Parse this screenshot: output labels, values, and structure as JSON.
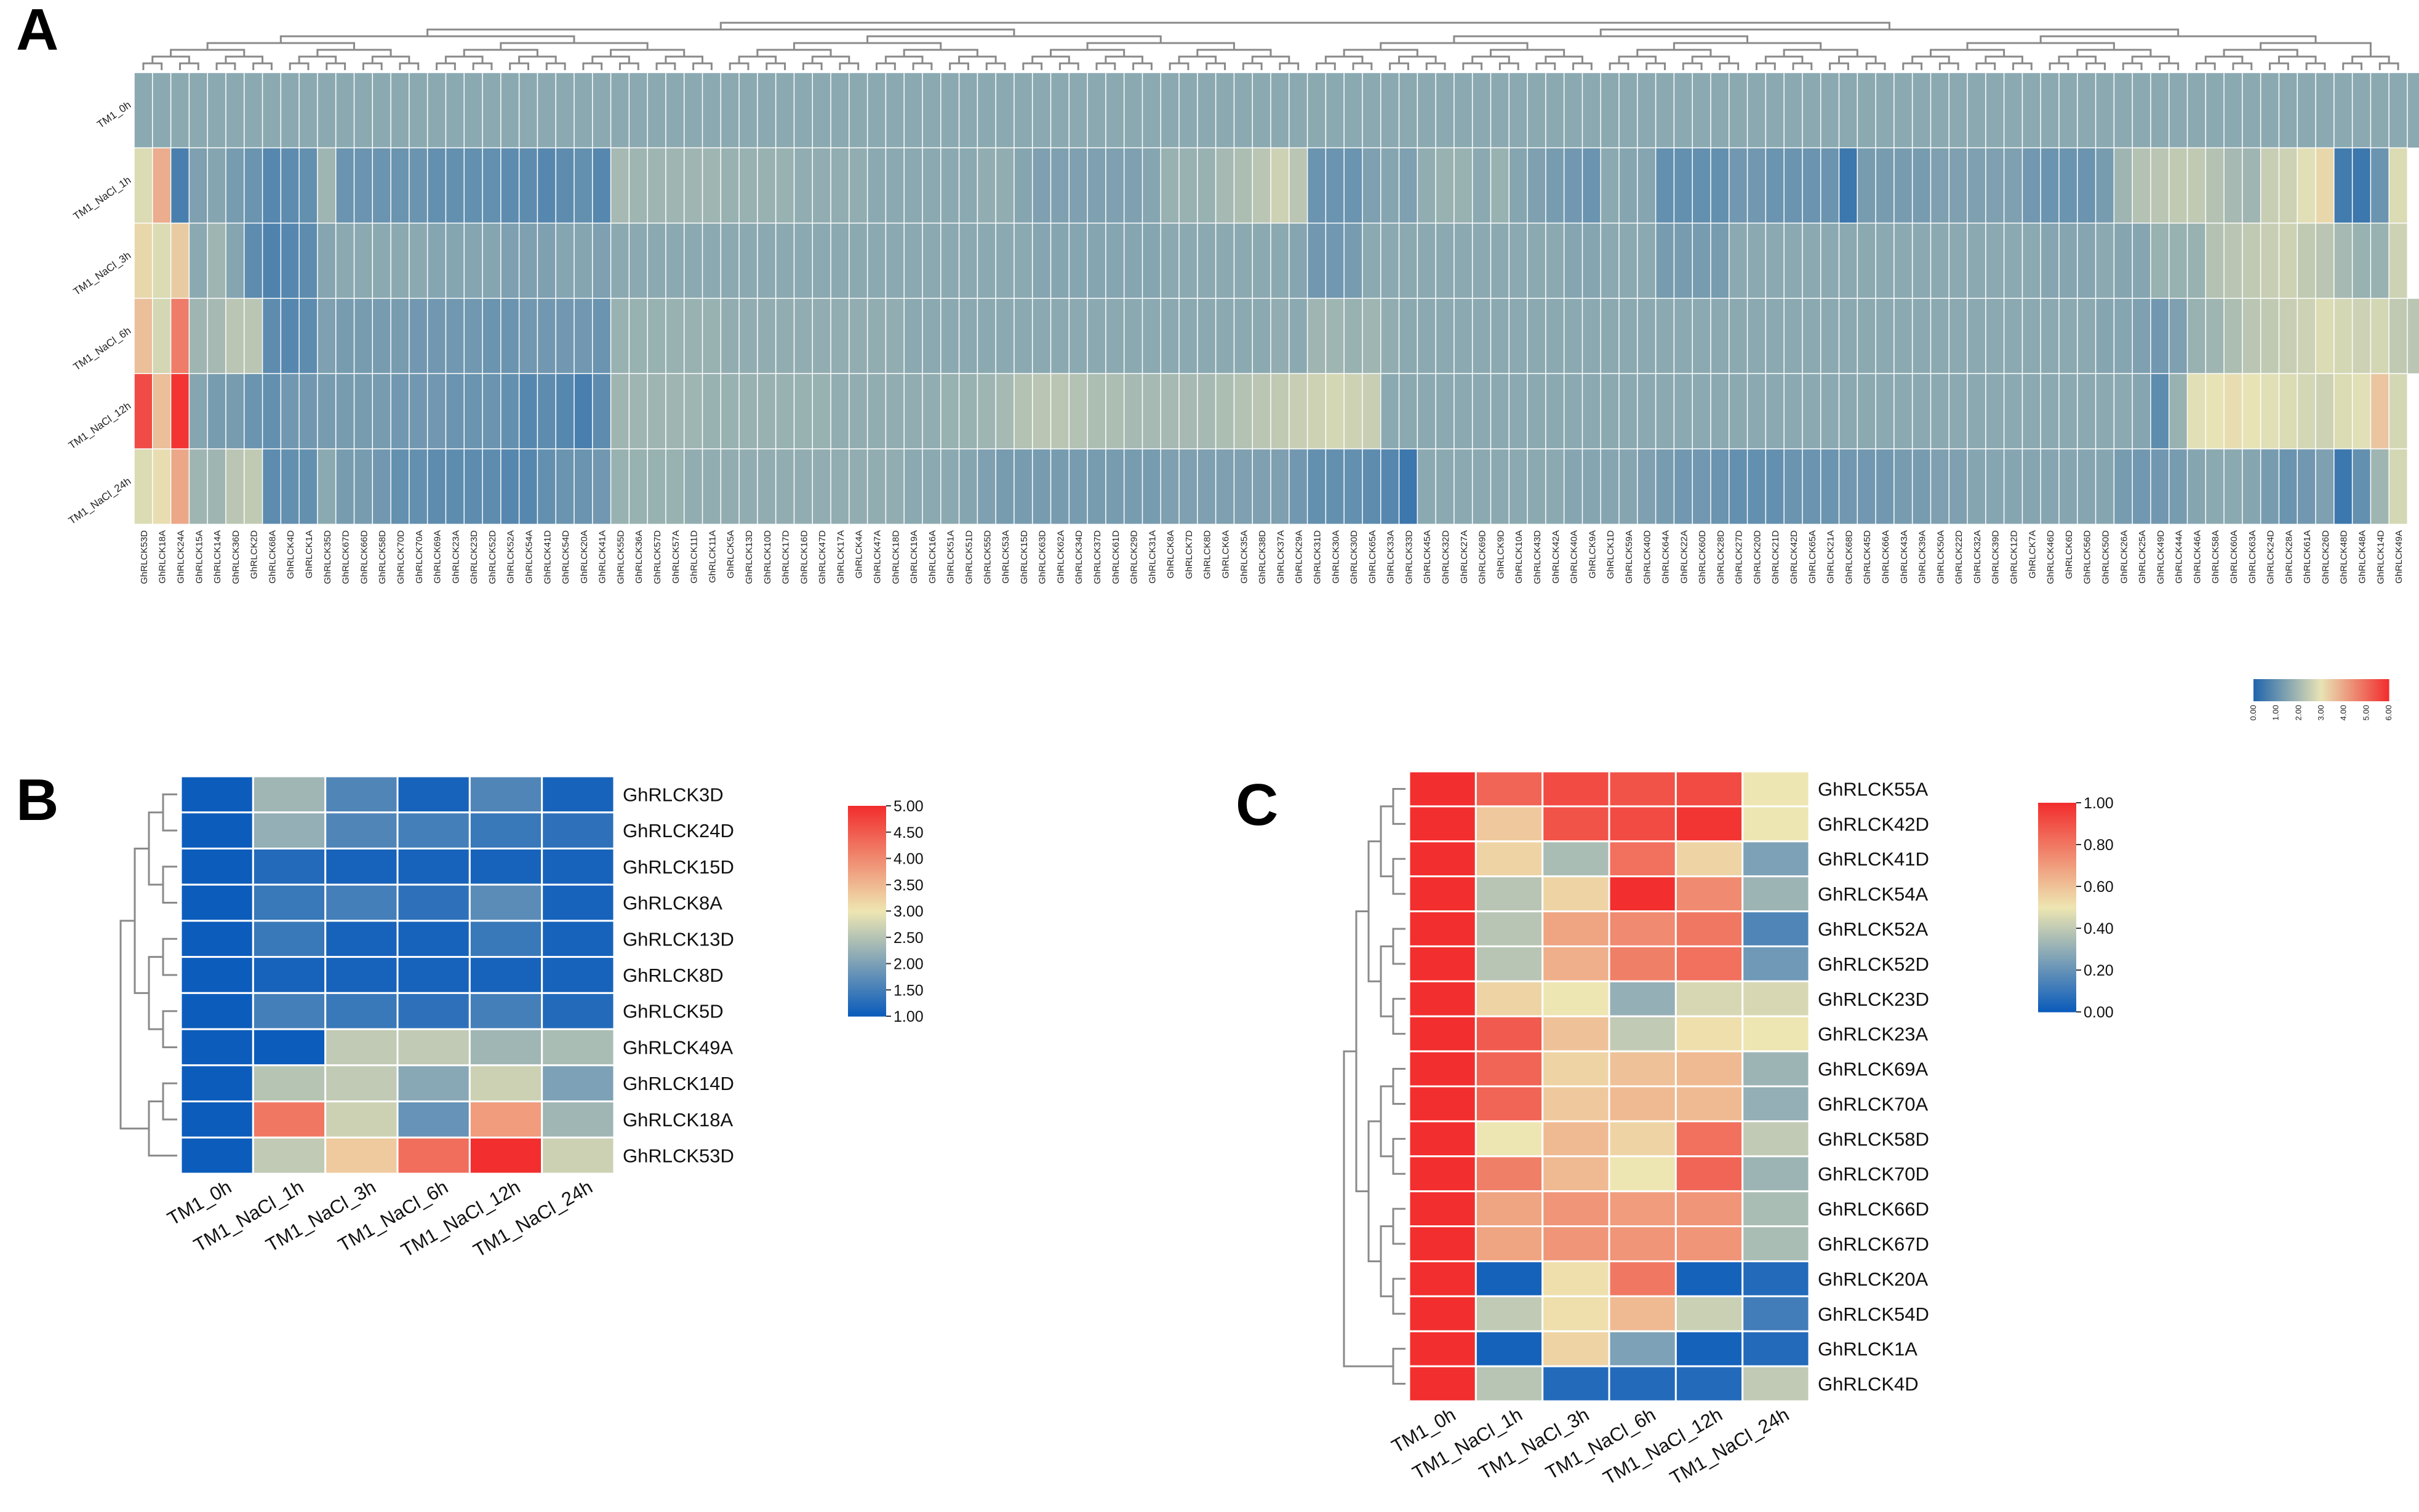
{
  "panels": {
    "a": "A",
    "b": "B",
    "c": "C"
  },
  "chart_data": [
    {
      "type": "heatmap",
      "panel": "A",
      "title": "",
      "rows": [
        "TM1_0h",
        "TM1_NaCl_1h",
        "TM1_NaCl_3h",
        "TM1_NaCl_6h",
        "TM1_NaCl_12h",
        "TM1_NaCl_24h"
      ],
      "columns": [
        "GhRLCK53D",
        "GhRLCK18A",
        "GhRLCK24A",
        "GhRLCK15A",
        "GhRLCK14A",
        "GhRLCK36D",
        "GhRLCK2D",
        "GhRLCK68A",
        "GhRLCK4D",
        "GhRLCK1A",
        "GhRLCK35D",
        "GhRLCK67D",
        "GhRLCK66D",
        "GhRLCK58D",
        "GhRLCK70D",
        "GhRLCK70A",
        "GhRLCK69A",
        "GhRLCK23A",
        "GhRLCK23D",
        "GhRLCK52D",
        "GhRLCK52A",
        "GhRLCK54A",
        "GhRLCK41D",
        "GhRLCK54D",
        "GhRLCK20A",
        "GhRLCK41A",
        "GhRLCK55D",
        "GhRLCK36A",
        "GhRLCK57D",
        "GhRLCK57A",
        "GhRLCK11D",
        "GhRLCK11A",
        "GhRLCK5A",
        "GhRLCK13D",
        "GhRLCK10D",
        "GhRLCK17D",
        "GhRLCK16D",
        "GhRLCK47D",
        "GhRLCK17A",
        "GhRLCK4A",
        "GhRLCK47A",
        "GhRLCK18D",
        "GhRLCK19A",
        "GhRLCK16A",
        "GhRLCK51A",
        "GhRLCK51D",
        "GhRLCK55D",
        "GhRLCK53A",
        "GhRLCK15D",
        "GhRLCK63D",
        "GhRLCK62A",
        "GhRLCK34D",
        "GhRLCK37D",
        "GhRLCK61D",
        "GhRLCK29D",
        "GhRLCK31A",
        "GhRLCK8A",
        "GhRLCK7D",
        "GhRLCK8D",
        "GhRLCK6A",
        "GhRLCK35A",
        "GhRLCK38D",
        "GhRLCK37A",
        "GhRLCK29A",
        "GhRLCK31D",
        "GhRLCK30A",
        "GhRLCK30D",
        "GhRLCK65A",
        "GhRLCK33A",
        "GhRLCK33D",
        "GhRLCK45A",
        "GhRLCK32D",
        "GhRLCK27A",
        "GhRLCK69D",
        "GhRLCK9D",
        "GhRLCK10A",
        "GhRLCK43D",
        "GhRLCK42A",
        "GhRLCK40A",
        "GhRLCK9A",
        "GhRLCK1D",
        "GhRLCK59A",
        "GhRLCK40D",
        "GhRLCK64A",
        "GhRLCK22A",
        "GhRLCK60D",
        "GhRLCK28D",
        "GhRLCK27D",
        "GhRLCK20D",
        "GhRLCK21D",
        "GhRLCK42D",
        "GhRLCK65A",
        "GhRLCK21A",
        "GhRLCK68D",
        "GhRLCK45D",
        "GhRLCK66A",
        "GhRLCK43A",
        "GhRLCK39A",
        "GhRLCK50A",
        "GhRLCK22D",
        "GhRLCK32A",
        "GhRLCK39D",
        "GhRLCK12D",
        "GhRLCK7A",
        "GhRLCK46D",
        "GhRLCK6D",
        "GhRLCK56D",
        "GhRLCK50D",
        "GhRLCK26A",
        "GhRLCK25A",
        "GhRLCK49D",
        "GhRLCK44A",
        "GhRLCK46A",
        "GhRLCK58A",
        "GhRLCK60A",
        "GhRLCK63A",
        "GhRLCK24D",
        "GhRLCK28A",
        "GhRLCK61A",
        "GhRLCK26D",
        "GhRLCK48D",
        "GhRLCK48A",
        "GhRLCK14D",
        "GhRLCK49A"
      ],
      "values": [
        [
          1.6,
          1.6,
          1.6,
          1.6,
          1.6,
          1.6,
          1.6,
          1.6,
          1.6,
          1.6,
          1.6,
          1.6,
          1.6,
          1.6,
          1.6,
          1.6,
          1.6,
          1.6,
          1.6,
          1.6,
          1.6,
          1.6,
          1.6,
          1.6,
          1.6,
          1.6,
          1.6,
          1.6,
          1.6,
          1.6,
          1.6,
          1.6,
          1.6,
          1.6,
          1.6,
          1.6,
          1.6,
          1.6,
          1.6,
          1.6,
          1.6,
          1.6,
          1.6,
          1.6,
          1.6,
          1.6,
          1.6,
          1.6,
          1.6,
          1.6,
          1.6,
          1.6,
          1.6,
          1.6,
          1.6,
          1.6,
          1.6,
          1.6,
          1.6,
          1.6,
          1.6,
          1.6,
          1.6,
          1.6,
          1.6,
          1.6,
          1.6,
          1.6,
          1.6,
          1.6,
          1.6,
          1.6,
          1.6,
          1.6,
          1.6,
          1.6,
          1.6,
          1.6,
          1.6,
          1.6,
          1.6,
          1.6,
          1.6,
          1.6,
          1.6,
          1.6,
          1.6,
          1.6,
          1.6,
          1.6,
          1.6,
          1.6,
          1.6,
          1.6,
          1.6,
          1.6,
          1.6,
          1.6,
          1.6,
          1.6,
          1.6,
          1.6,
          1.6,
          1.6,
          1.6,
          1.6,
          1.6,
          1.6,
          1.6,
          1.6,
          1.6,
          1.6,
          1.6,
          1.6,
          1.6,
          1.6,
          1.6,
          1.6,
          1.6,
          1.6,
          1.6,
          1.6,
          1.6,
          1.6,
          1.6,
          1.6,
          1.6,
          1.6
        ],
        [
          2.8,
          3.9,
          0.6,
          1.4,
          1.5,
          1.3,
          1.1,
          0.8,
          0.9,
          1.0,
          1.9,
          1.1,
          1.1,
          1.1,
          1.1,
          1.1,
          1.0,
          1.0,
          1.0,
          1.0,
          0.9,
          0.9,
          0.8,
          0.9,
          1.0,
          0.8,
          2.0,
          1.9,
          1.9,
          1.9,
          1.9,
          1.9,
          1.8,
          1.8,
          1.8,
          1.8,
          1.7,
          1.7,
          1.7,
          1.7,
          1.6,
          1.6,
          1.6,
          1.6,
          1.6,
          1.6,
          1.7,
          1.7,
          1.5,
          1.4,
          1.4,
          1.4,
          1.4,
          1.4,
          1.4,
          1.5,
          1.8,
          1.8,
          1.8,
          2.0,
          2.1,
          2.3,
          2.6,
          2.3,
          1.1,
          1.1,
          1.1,
          1.4,
          1.5,
          1.4,
          1.7,
          1.8,
          1.8,
          1.6,
          1.8,
          1.5,
          1.4,
          1.3,
          1.2,
          1.1,
          1.6,
          1.5,
          1.5,
          1.0,
          1.0,
          1.0,
          1.0,
          1.2,
          1.2,
          1.1,
          1.1,
          1.1,
          1.1,
          0.4,
          1.3,
          1.3,
          1.3,
          1.3,
          1.4,
          1.4,
          1.4,
          1.4,
          1.4,
          1.2,
          1.1,
          1.1,
          1.1,
          1.3,
          1.9,
          2.2,
          2.3,
          2.4,
          2.4,
          2.2,
          2.0,
          1.9,
          2.5,
          2.6,
          2.9,
          3.2,
          0.5,
          0.4,
          1.1,
          2.8
        ],
        [
          3.2,
          2.8,
          3.4,
          1.6,
          1.9,
          1.5,
          0.9,
          0.7,
          0.8,
          0.9,
          1.5,
          1.6,
          1.6,
          1.6,
          1.6,
          1.6,
          1.5,
          1.5,
          1.5,
          1.5,
          1.4,
          1.4,
          1.4,
          1.5,
          1.5,
          1.4,
          1.6,
          1.6,
          1.6,
          1.6,
          1.6,
          1.6,
          1.6,
          1.6,
          1.6,
          1.6,
          1.6,
          1.6,
          1.6,
          1.6,
          1.6,
          1.6,
          1.6,
          1.6,
          1.6,
          1.6,
          1.6,
          1.6,
          1.6,
          1.5,
          1.5,
          1.5,
          1.5,
          1.5,
          1.5,
          1.5,
          1.6,
          1.6,
          1.6,
          1.6,
          1.6,
          1.6,
          1.6,
          1.5,
          1.2,
          1.2,
          1.3,
          1.6,
          1.6,
          1.6,
          1.6,
          1.6,
          1.6,
          1.6,
          1.6,
          1.6,
          1.6,
          1.6,
          1.5,
          1.5,
          1.6,
          1.6,
          1.6,
          1.3,
          1.3,
          1.3,
          1.3,
          1.6,
          1.6,
          1.6,
          1.6,
          1.6,
          1.6,
          1.6,
          1.6,
          1.6,
          1.6,
          1.6,
          1.6,
          1.6,
          1.6,
          1.6,
          1.6,
          1.6,
          1.5,
          1.5,
          1.5,
          1.6,
          1.5,
          1.5,
          1.8,
          1.8,
          1.8,
          2.2,
          2.3,
          2.4,
          2.5,
          2.6,
          2.4,
          2.3,
          2.0,
          1.8,
          1.8,
          2.6
        ],
        [
          3.6,
          2.7,
          4.7,
          1.9,
          2.0,
          2.3,
          2.3,
          0.9,
          0.8,
          0.9,
          1.4,
          1.3,
          1.3,
          1.3,
          1.3,
          1.2,
          1.2,
          1.2,
          1.2,
          1.1,
          1.1,
          1.2,
          1.2,
          1.2,
          1.2,
          1.1,
          1.8,
          1.8,
          1.8,
          1.8,
          1.8,
          1.8,
          1.7,
          1.7,
          1.7,
          1.7,
          1.7,
          1.7,
          1.7,
          1.7,
          1.7,
          1.7,
          1.6,
          1.6,
          1.6,
          1.6,
          1.6,
          1.6,
          1.6,
          1.6,
          1.6,
          1.6,
          1.6,
          1.6,
          1.6,
          1.6,
          1.6,
          1.6,
          1.6,
          1.6,
          1.6,
          1.6,
          1.7,
          1.6,
          1.9,
          1.9,
          1.8,
          1.9,
          1.7,
          1.6,
          1.6,
          1.6,
          1.6,
          1.6,
          1.6,
          1.6,
          1.6,
          1.6,
          1.6,
          1.6,
          1.6,
          1.6,
          1.6,
          1.6,
          1.6,
          1.6,
          1.6,
          1.6,
          1.6,
          1.6,
          1.6,
          1.6,
          1.6,
          1.6,
          1.6,
          1.6,
          1.6,
          1.6,
          1.6,
          1.6,
          1.6,
          1.6,
          1.6,
          1.6,
          1.6,
          1.6,
          1.6,
          1.5,
          1.5,
          1.4,
          1.2,
          1.4,
          1.8,
          1.9,
          2.1,
          2.3,
          2.4,
          2.5,
          2.6,
          2.8,
          2.7,
          2.6,
          2.7,
          2.4,
          2.3,
          2.8
        ],
        [
          5.5,
          3.6,
          5.9,
          1.5,
          1.3,
          1.3,
          1.1,
          1.0,
          1.2,
          1.2,
          1.3,
          1.3,
          1.3,
          1.3,
          1.2,
          1.2,
          1.2,
          1.1,
          1.1,
          1.1,
          1.0,
          0.8,
          0.9,
          0.8,
          0.6,
          0.9,
          1.9,
          1.9,
          1.9,
          1.9,
          1.9,
          1.8,
          1.8,
          1.8,
          1.8,
          1.8,
          1.8,
          1.8,
          1.7,
          1.7,
          1.7,
          1.7,
          1.7,
          1.7,
          1.8,
          1.8,
          1.9,
          2.0,
          2.2,
          2.3,
          2.3,
          2.2,
          2.1,
          2.1,
          2.0,
          2.0,
          2.0,
          2.0,
          2.0,
          2.1,
          2.2,
          2.3,
          2.4,
          2.5,
          2.6,
          2.7,
          2.6,
          2.5,
          1.6,
          1.6,
          1.6,
          1.6,
          1.6,
          1.6,
          1.6,
          1.6,
          1.6,
          1.6,
          1.6,
          1.6,
          1.6,
          1.6,
          1.6,
          1.6,
          1.6,
          1.6,
          1.6,
          1.6,
          1.6,
          1.6,
          1.6,
          1.6,
          1.6,
          1.6,
          1.6,
          1.6,
          1.6,
          1.6,
          1.6,
          1.6,
          1.6,
          1.6,
          1.6,
          1.6,
          1.6,
          1.6,
          1.6,
          1.6,
          1.6,
          1.5,
          0.9,
          1.8,
          2.9,
          3.0,
          3.1,
          3.0,
          2.9,
          2.8,
          2.7,
          2.6,
          2.8,
          2.9,
          3.5,
          2.7
        ],
        [
          2.8,
          3.1,
          4.0,
          1.9,
          1.9,
          2.3,
          2.4,
          0.9,
          1.0,
          1.0,
          1.6,
          1.3,
          1.3,
          1.2,
          1.0,
          1.0,
          0.9,
          0.9,
          0.9,
          0.9,
          0.8,
          0.8,
          1.0,
          1.1,
          1.1,
          1.2,
          1.8,
          1.8,
          1.8,
          1.8,
          1.7,
          1.7,
          1.7,
          1.7,
          1.7,
          1.7,
          1.7,
          1.7,
          1.7,
          1.7,
          1.7,
          1.7,
          1.6,
          1.6,
          1.6,
          1.5,
          1.4,
          1.3,
          1.3,
          1.3,
          1.3,
          1.3,
          1.3,
          1.3,
          1.3,
          1.3,
          1.4,
          1.4,
          1.4,
          1.4,
          1.4,
          1.4,
          1.4,
          1.2,
          1.0,
          1.0,
          1.0,
          0.9,
          0.8,
          0.4,
          1.6,
          1.6,
          1.6,
          1.6,
          1.6,
          1.6,
          1.6,
          1.6,
          1.5,
          1.5,
          1.5,
          1.5,
          1.4,
          1.3,
          1.2,
          1.2,
          1.1,
          1.0,
          1.0,
          1.0,
          1.1,
          1.1,
          1.1,
          1.2,
          1.2,
          1.2,
          1.3,
          1.3,
          1.4,
          1.4,
          1.5,
          1.5,
          1.5,
          1.5,
          1.5,
          1.5,
          1.5,
          1.5,
          1.3,
          1.2,
          1.2,
          1.3,
          1.5,
          1.6,
          1.6,
          1.5,
          1.3,
          1.1,
          1.2,
          1.4,
          0.4,
          1.0,
          1.9,
          2.7
        ]
      ],
      "colorbar": {
        "min": 0,
        "max": 6,
        "ticks": [
          "0.00",
          "1.00",
          "2.00",
          "3.00",
          "4.00",
          "5.00",
          "6.00"
        ]
      },
      "colormap": [
        "#2166ac",
        "#e8e3b5",
        "#f22e2e"
      ]
    },
    {
      "type": "heatmap",
      "panel": "B",
      "title": "",
      "rows": [
        "GhRLCK3D",
        "GhRLCK24D",
        "GhRLCK15D",
        "GhRLCK8A",
        "GhRLCK13D",
        "GhRLCK8D",
        "GhRLCK5D",
        "GhRLCK49A",
        "GhRLCK14D",
        "GhRLCK18A",
        "GhRLCK53D"
      ],
      "columns": [
        "TM1_0h",
        "TM1_NaCl_1h",
        "TM1_NaCl_3h",
        "TM1_NaCl_6h",
        "TM1_NaCl_12h",
        "TM1_NaCl_24h"
      ],
      "values": [
        [
          1.0,
          2.3,
          1.6,
          1.1,
          1.6,
          1.1
        ],
        [
          1.0,
          2.2,
          1.6,
          1.5,
          1.4,
          1.3
        ],
        [
          1.0,
          1.2,
          1.1,
          1.1,
          1.1,
          1.1
        ],
        [
          1.0,
          1.4,
          1.5,
          1.3,
          1.7,
          1.1
        ],
        [
          1.0,
          1.4,
          1.1,
          1.1,
          1.4,
          1.1
        ],
        [
          1.0,
          1.1,
          1.1,
          1.1,
          1.1,
          1.1
        ],
        [
          1.0,
          1.5,
          1.4,
          1.3,
          1.5,
          1.2
        ],
        [
          1.0,
          1.0,
          2.6,
          2.6,
          2.3,
          2.4
        ],
        [
          1.0,
          2.5,
          2.6,
          2.1,
          2.7,
          2.0
        ],
        [
          1.0,
          4.2,
          2.7,
          1.8,
          3.8,
          2.3
        ],
        [
          1.0,
          2.6,
          3.3,
          4.3,
          5.0,
          2.7
        ]
      ],
      "colorbar": {
        "min": 1,
        "max": 5,
        "ticks": [
          "1.00",
          "1.50",
          "2.00",
          "2.50",
          "3.00",
          "3.50",
          "4.00",
          "4.50",
          "5.00"
        ]
      },
      "colormap": [
        "#0c5cbb",
        "#eee6b2",
        "#f22e2e"
      ]
    },
    {
      "type": "heatmap",
      "panel": "C",
      "title": "",
      "rows": [
        "GhRLCK55A",
        "GhRLCK42D",
        "GhRLCK41D",
        "GhRLCK54A",
        "GhRLCK52A",
        "GhRLCK52D",
        "GhRLCK23D",
        "GhRLCK23A",
        "GhRLCK69A",
        "GhRLCK70A",
        "GhRLCK58D",
        "GhRLCK70D",
        "GhRLCK66D",
        "GhRLCK67D",
        "GhRLCK20A",
        "GhRLCK54D",
        "GhRLCK1A",
        "GhRLCK4D"
      ],
      "columns": [
        "TM1_0h",
        "TM1_NaCl_1h",
        "TM1_NaCl_3h",
        "TM1_NaCl_6h",
        "TM1_NaCl_12h",
        "TM1_NaCl_24h"
      ],
      "values": [
        [
          1.0,
          0.85,
          0.92,
          0.9,
          0.92,
          0.5
        ],
        [
          1.0,
          0.58,
          0.9,
          0.92,
          0.98,
          0.5
        ],
        [
          1.0,
          0.55,
          0.35,
          0.82,
          0.55,
          0.25
        ],
        [
          1.0,
          0.38,
          0.55,
          1.0,
          0.75,
          0.32
        ],
        [
          1.0,
          0.38,
          0.68,
          0.75,
          0.8,
          0.15
        ],
        [
          1.0,
          0.38,
          0.65,
          0.78,
          0.82,
          0.22
        ],
        [
          1.0,
          0.55,
          0.5,
          0.3,
          0.45,
          0.45
        ],
        [
          1.0,
          0.88,
          0.6,
          0.4,
          0.52,
          0.5
        ],
        [
          1.0,
          0.85,
          0.55,
          0.6,
          0.62,
          0.32
        ],
        [
          1.0,
          0.85,
          0.58,
          0.62,
          0.62,
          0.3
        ],
        [
          1.0,
          0.5,
          0.62,
          0.55,
          0.82,
          0.4
        ],
        [
          1.0,
          0.78,
          0.62,
          0.5,
          0.85,
          0.32
        ],
        [
          1.0,
          0.68,
          0.72,
          0.7,
          0.72,
          0.35
        ],
        [
          1.0,
          0.68,
          0.72,
          0.72,
          0.72,
          0.35
        ],
        [
          1.0,
          0.02,
          0.52,
          0.8,
          0.02,
          0.05
        ],
        [
          1.0,
          0.4,
          0.52,
          0.62,
          0.42,
          0.12
        ],
        [
          1.0,
          0.02,
          0.55,
          0.25,
          0.02,
          0.05
        ],
        [
          1.0,
          0.38,
          0.05,
          0.05,
          0.05,
          0.4
        ]
      ],
      "colorbar": {
        "min": 0,
        "max": 1,
        "ticks": [
          "0.00",
          "0.20",
          "0.40",
          "0.60",
          "0.80",
          "1.00"
        ]
      },
      "colormap": [
        "#0c5cbb",
        "#eee6b2",
        "#f22e2e"
      ]
    }
  ]
}
